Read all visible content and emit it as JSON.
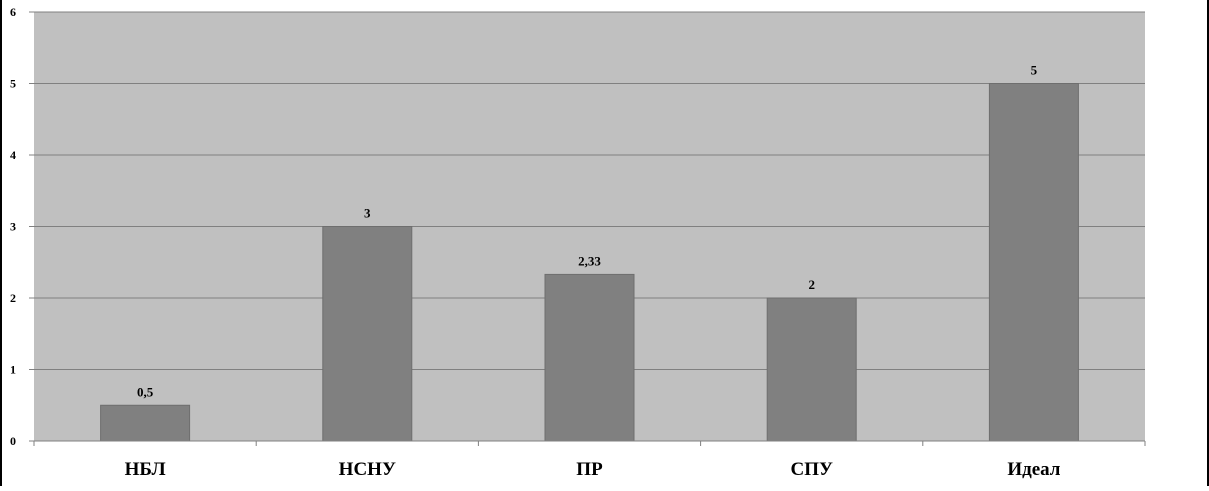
{
  "colors": {
    "plot_background": "#c0c0c0",
    "bar_fill": "#808080",
    "gridline": "#808080",
    "text": "#000000"
  },
  "chart_data": {
    "type": "bar",
    "categories": [
      "НБЛ",
      "НСНУ",
      "ПР",
      "СПУ",
      "Идеал"
    ],
    "values": [
      0.5,
      3,
      2.33,
      2,
      5
    ],
    "data_labels": [
      "0,5",
      "3",
      "2,33",
      "2",
      "5"
    ],
    "y_ticks": [
      "0",
      "1",
      "2",
      "3",
      "4",
      "5",
      "6"
    ],
    "ylim": [
      0,
      6
    ],
    "grid": true,
    "legend": "none",
    "title": "",
    "xlabel": "",
    "ylabel": ""
  }
}
